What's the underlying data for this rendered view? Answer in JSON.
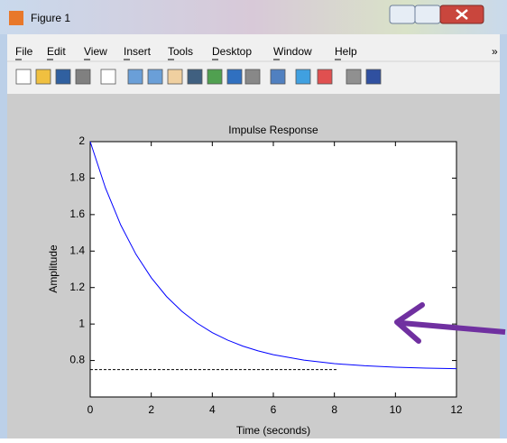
{
  "window": {
    "title": "Figure 1"
  },
  "menu": [
    "File",
    "Edit",
    "View",
    "Insert",
    "Tools",
    "Desktop",
    "Window",
    "Help"
  ],
  "chart_data": {
    "type": "line",
    "title": "Impulse Response",
    "x_label": "Time (seconds)",
    "y_label": "Amplitude",
    "series": [
      {
        "color": "#0000ff",
        "style": "solid",
        "x": [
          0,
          0.5,
          1,
          1.5,
          2,
          2.5,
          3,
          3.5,
          4,
          4.5,
          5,
          5.5,
          6,
          7,
          8,
          9,
          10,
          11,
          12
        ],
        "values": [
          2,
          1.746,
          1.543,
          1.382,
          1.254,
          1.151,
          1.07,
          1.005,
          0.953,
          0.912,
          0.879,
          0.853,
          0.832,
          0.802,
          0.783,
          0.771,
          0.763,
          0.758,
          0.755
        ]
      },
      {
        "color": "#000000",
        "style": "dashed",
        "x": [
          0,
          8.1
        ],
        "values": [
          0.75,
          0.75
        ]
      }
    ],
    "xlim": [
      0,
      12
    ],
    "xticks": [
      0,
      2,
      4,
      6,
      8,
      10,
      12
    ],
    "ylim": [
      0.6,
      2
    ],
    "yticks": [
      0.8,
      1,
      1.2,
      1.4,
      1.6,
      1.8,
      2
    ],
    "grid": false
  }
}
